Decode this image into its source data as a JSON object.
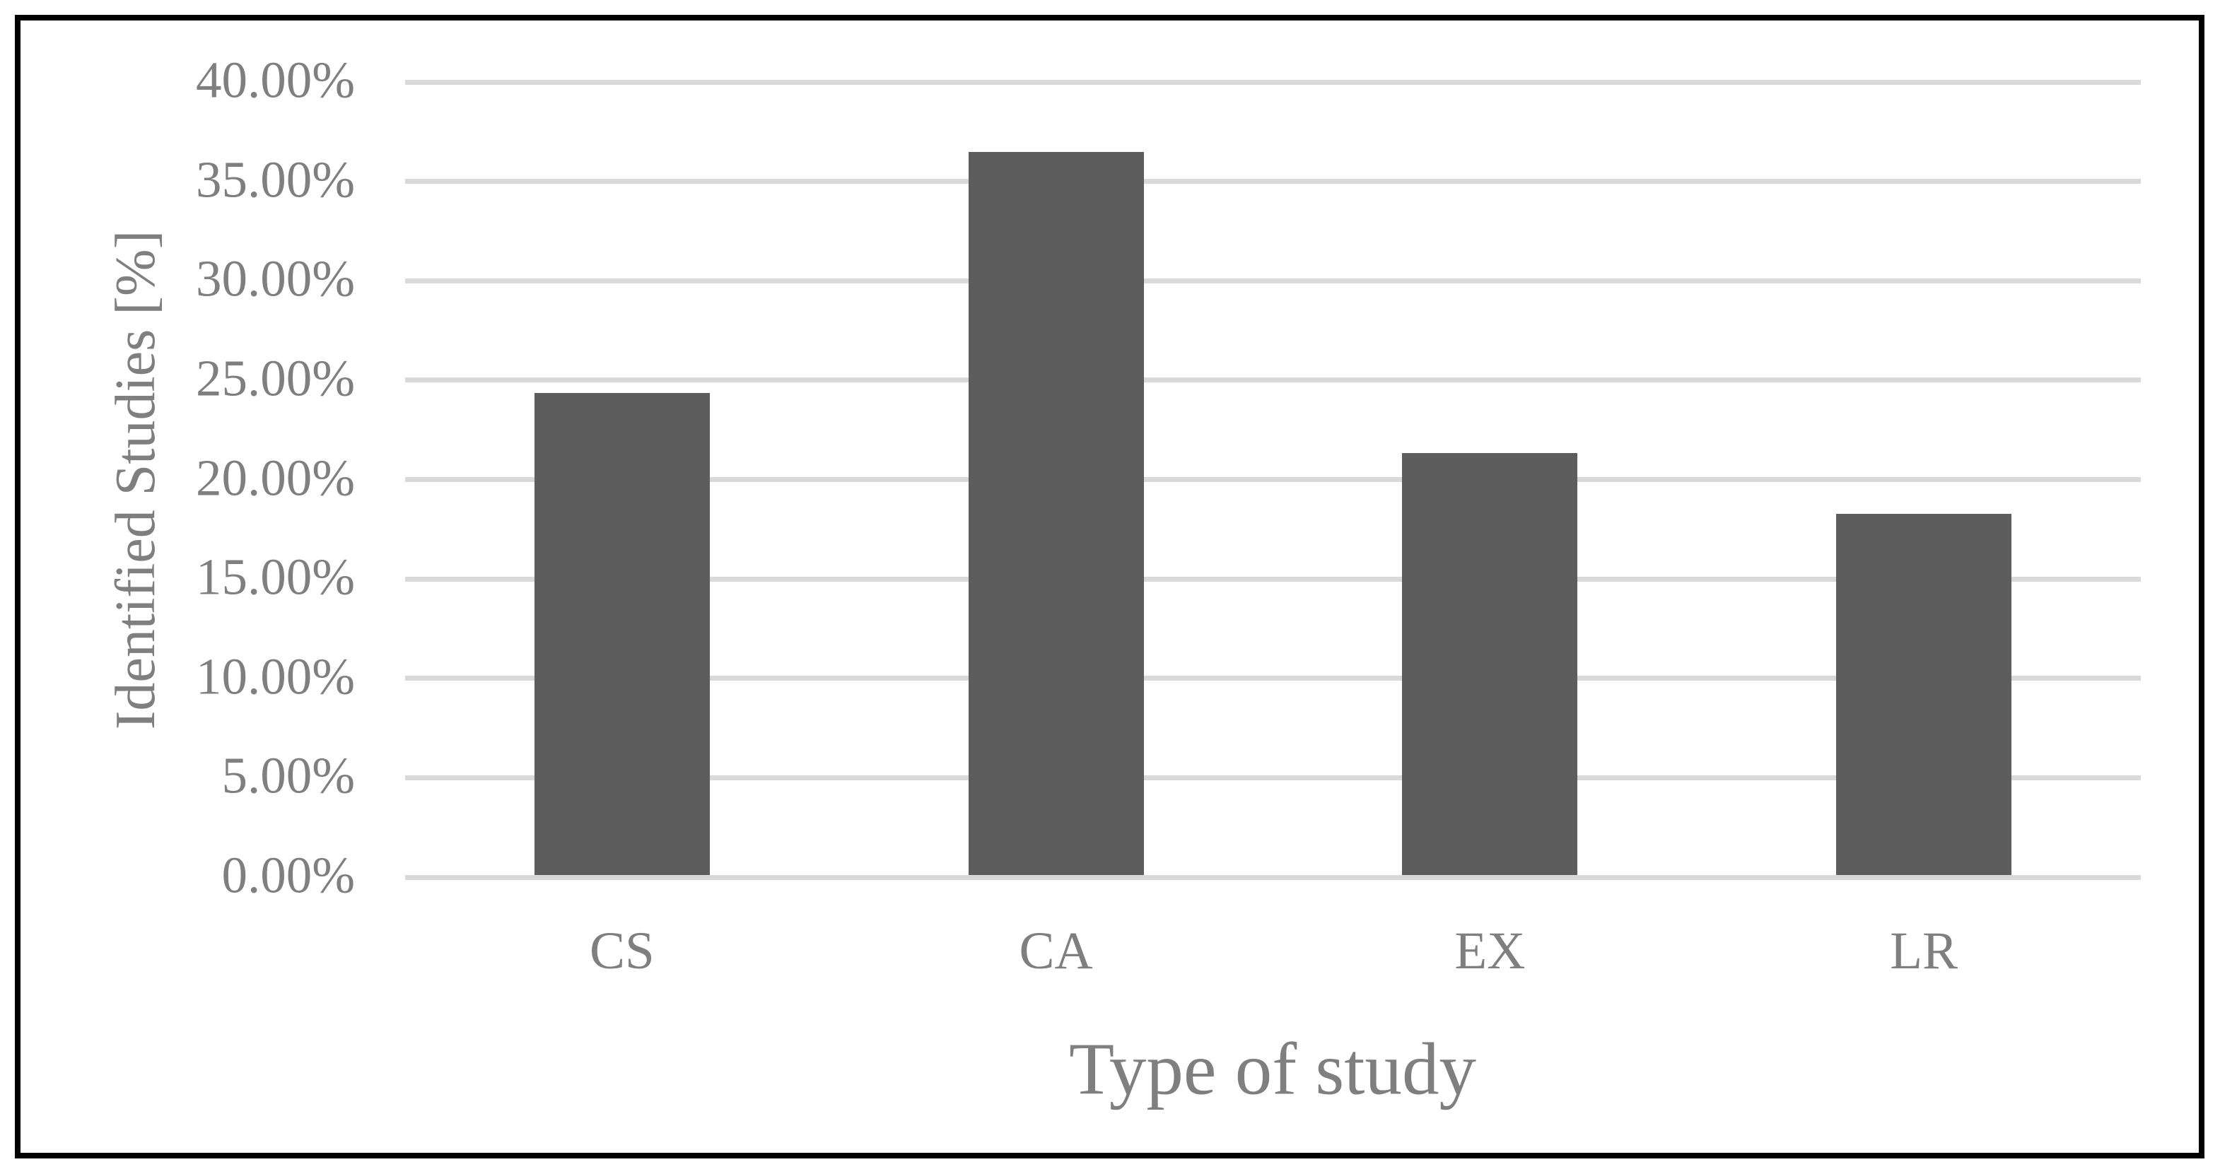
{
  "chart_data": {
    "type": "bar",
    "categories": [
      "CS",
      "CA",
      "EX",
      "LR"
    ],
    "values": [
      24.24,
      36.36,
      21.21,
      18.18
    ],
    "value_unit": "percent",
    "y_ticks": [
      "40.00%",
      "35.00%",
      "30.00%",
      "25.00%",
      "20.00%",
      "15.00%",
      "10.00%",
      "5.00%",
      "0.00%"
    ],
    "ylim": [
      0,
      40
    ],
    "y_tick_step": 5,
    "xlabel": "Type of study",
    "ylabel": "Identified Studies [%]",
    "grid": true,
    "legend": "none",
    "colors": {
      "bar": "#5d5d5d",
      "gridline": "#d9d9d9",
      "axis_text": "#7f7f7f",
      "frame_border": "#000000",
      "background": "#ffffff"
    }
  }
}
